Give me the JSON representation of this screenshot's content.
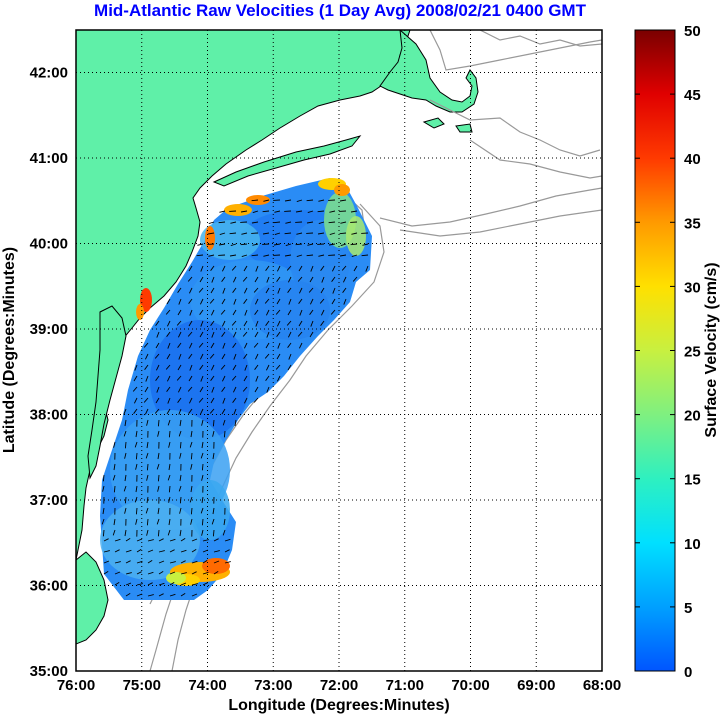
{
  "title": "Mid-Atlantic Raw Velocities (1 Day Avg) 2008/02/21 0400 GMT",
  "xlabel": "Longitude (Degrees:Minutes)",
  "ylabel": "Latitude (Degrees:Minutes)",
  "colorbar_label": "Surface Velocity (cm/s)",
  "x_ticks": [
    "76:00",
    "75:00",
    "74:00",
    "73:00",
    "72:00",
    "71:00",
    "70:00",
    "69:00",
    "68:00"
  ],
  "y_ticks": [
    "42:00",
    "41:00",
    "40:00",
    "39:00",
    "38:00",
    "37:00",
    "36:00",
    "35:00"
  ],
  "colorbar_ticks": [
    "50",
    "45",
    "40",
    "35",
    "30",
    "25",
    "20",
    "15",
    "10",
    "5",
    "0"
  ],
  "colors": {
    "title": "#0000ff",
    "land": "#5ff0a8",
    "water_map": "#ffffff",
    "coastline": "#000000",
    "bathymetry": "#999999",
    "grid": "#000000",
    "vector": "#000000"
  },
  "map": {
    "lon_range": [
      -76,
      -68
    ],
    "lat_range": [
      35,
      42.5
    ],
    "grid": "dotted"
  },
  "colorbar": {
    "min": 0,
    "max": 50,
    "stops": [
      "#0055ff",
      "#00a0ff",
      "#00e0ff",
      "#2ef0c0",
      "#7ff080",
      "#c8f040",
      "#ffe000",
      "#ff9a00",
      "#ff3a00",
      "#e00000",
      "#7a0000"
    ]
  }
}
